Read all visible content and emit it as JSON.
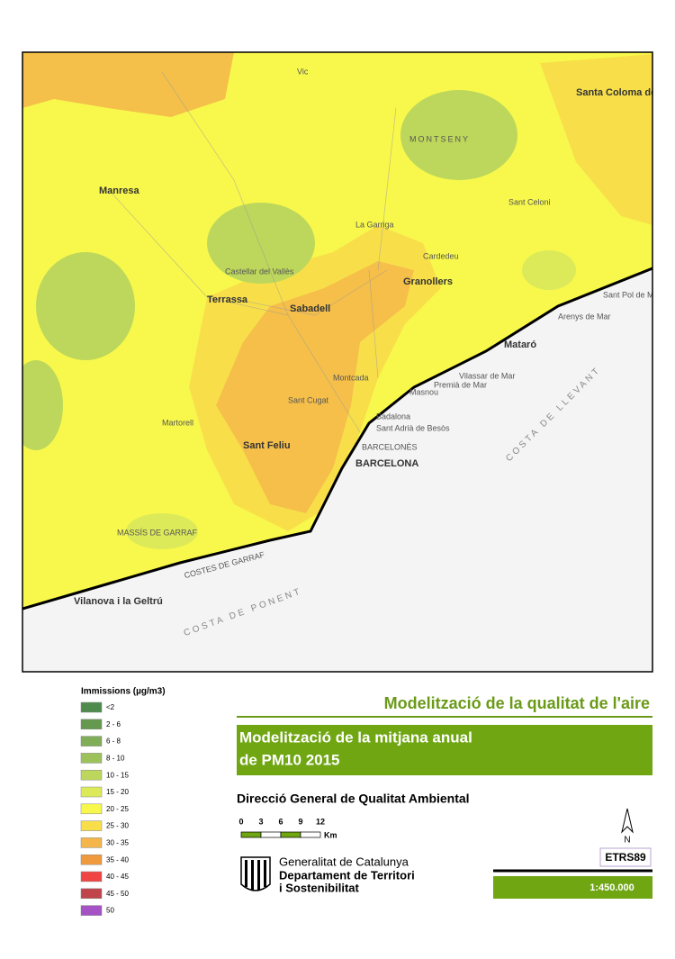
{
  "map": {
    "labels": [
      "Manresa",
      "Terrassa",
      "Sabadell",
      "Granollers",
      "Mataró",
      "BARCELONA",
      "BARCELONÈS",
      "Sant Feliu",
      "Vilanova i la Geltrú",
      "COSTA DE PONENT",
      "COSTA DE LLEVANT",
      "COSTES DE GARRAF",
      "MASSÍS DE GARRAF",
      "Santa Coloma de Farners",
      "MONTSENY",
      "Badalona",
      "Sant Adrià de Besòs",
      "Premià de Mar",
      "Vilassar de Mar",
      "Masnou",
      "Arenys de Mar",
      "Sant Pol de Mar",
      "Castellar del Vallès",
      "Sant Cugat",
      "Martorell",
      "Montcada",
      "La Garriga",
      "Cardedeu",
      "Sant Celoni",
      "Vic"
    ]
  },
  "legend": {
    "title": "Immissions (µg/m3)",
    "items": [
      {
        "label": "<2",
        "color": "#4f8a4d"
      },
      {
        "label": "2 - 6",
        "color": "#65994f"
      },
      {
        "label": "6 - 8",
        "color": "#80ae58"
      },
      {
        "label": "8 - 10",
        "color": "#9dc25c"
      },
      {
        "label": "10 - 15",
        "color": "#bcd75b"
      },
      {
        "label": "15 - 20",
        "color": "#dcea5a"
      },
      {
        "label": "20 - 25",
        "color": "#f8f84c"
      },
      {
        "label": "25 - 30",
        "color": "#f8df4a"
      },
      {
        "label": "30 - 35",
        "color": "#f4b64a"
      },
      {
        "label": "35 - 40",
        "color": "#ef9a3c"
      },
      {
        "label": "40 - 45",
        "color": "#f04444"
      },
      {
        "label": "45 - 50",
        "color": "#c0444c"
      },
      {
        "label": "50",
        "color": "#a452c4"
      }
    ]
  },
  "header": {
    "title": "Modelització de la qualitat de l'aire",
    "subtitle_lines": [
      "Modelització de la mitjana anual",
      "de PM10 2015"
    ],
    "department": "Direcció General de Qualitat Ambiental"
  },
  "scale_bar": {
    "ticks": [
      "0",
      "3",
      "6",
      "9",
      "12"
    ],
    "unit": "Km"
  },
  "logo": {
    "lines": [
      "Generalitat de Catalunya",
      "Departament de Territori",
      "i Sostenibilitat"
    ]
  },
  "north": "N",
  "projection": "ETRS89",
  "scale": "1:450.000"
}
